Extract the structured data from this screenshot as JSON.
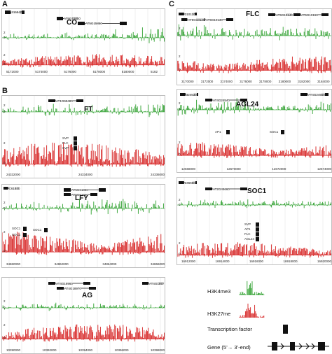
{
  "colors": {
    "h3k4me3": "#2ea02e",
    "h3k27me": "#d62020",
    "box": "#111111",
    "frame": "#bfbfbf"
  },
  "panels": {
    "a": "A",
    "b": "B",
    "c": "C"
  },
  "tracks": {
    "co": {
      "name": "CO",
      "labels": [
        "315840",
        "AT5G15850",
        "AT5G15860"
      ],
      "ticks": [
        "5172000",
        "5174000",
        "5176000",
        "5178000",
        "5180000",
        "5182"
      ]
    },
    "ft": {
      "name": "FT",
      "labels": [
        "AT1G65480"
      ],
      "tfs": [
        "SVP",
        "FLC",
        "SVP"
      ],
      "ticks": [
        "24332000",
        "24334000",
        "24336000"
      ]
    },
    "lfy": {
      "name": "LFY",
      "labels": [
        "AT5G61850",
        "AT5G61860",
        "C61840"
      ],
      "tfs": [
        "SOC1",
        "SOC1",
        "SOC1"
      ],
      "ticks": [
        "34860000",
        "34862000",
        "34864000",
        "34866000"
      ]
    },
    "ag": {
      "name": "AG",
      "labels": [
        "AT4G18960",
        "AT4G18970",
        "AT4G1897"
      ],
      "ticks": [
        "10390000",
        "10392000",
        "10394000",
        "10396000",
        "10398000"
      ]
    },
    "flc": {
      "name": "FLC",
      "labels": [
        "310110",
        "AT5G10130",
        "AT5G10120",
        "AT5G10140",
        "AT5G10150"
      ],
      "ticks": [
        "3170000",
        "3172000",
        "3174000",
        "3176000",
        "3178000",
        "3180000",
        "3182000",
        "3184000"
      ]
    },
    "agl24": {
      "name": "AGL24",
      "labels": [
        "324530",
        "AT4G24540",
        "AT4G24550"
      ],
      "tfs": [
        "AP1",
        "SOC1"
      ],
      "ticks": [
        "12668000",
        "12670000",
        "12672000",
        "12674000"
      ]
    },
    "soc1": {
      "name": "SOC1",
      "labels": [
        "345650",
        "AT2G45660"
      ],
      "tfs": [
        "SVP",
        "AP1",
        "FLC",
        "AGL24",
        "AP1"
      ],
      "ticks": [
        "16912000",
        "16914000",
        "16916000",
        "16918000",
        "16920000"
      ]
    }
  },
  "legend": {
    "h3k4me3": "H3K4me3",
    "h3k27me": "H3K27me",
    "tf": "Transcription factor",
    "gene": "Gene (5’→ 3’-end)"
  }
}
